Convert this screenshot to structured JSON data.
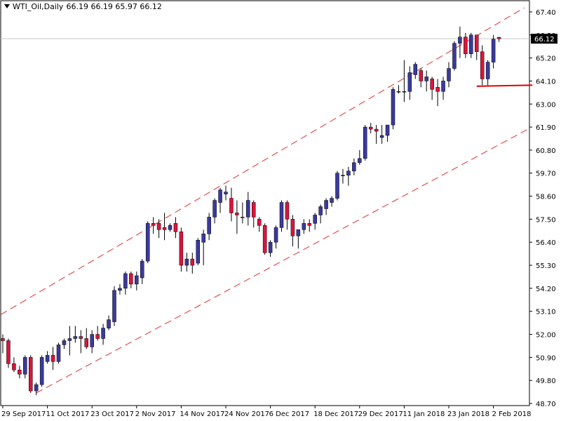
{
  "header": {
    "symbol": "WTI_Oil,Daily",
    "ohlc": "66.19 66.19 65.97 66.12"
  },
  "chart_data": {
    "type": "candlestick",
    "title": "WTI_Oil,Daily",
    "xlabel": "",
    "ylabel": "",
    "ylim": [
      48.7,
      67.6
    ],
    "grid": false,
    "y_ticks": [
      "67.40",
      "66.30",
      "65.20",
      "64.10",
      "63.00",
      "61.90",
      "60.80",
      "59.70",
      "58.60",
      "57.50",
      "56.40",
      "55.30",
      "54.20",
      "53.10",
      "52.00",
      "50.90",
      "49.80",
      "48.70"
    ],
    "x_ticks": [
      {
        "label": "29 Sep 2017",
        "bar": 0
      },
      {
        "label": "11 Oct 2017",
        "bar": 8
      },
      {
        "label": "23 Oct 2017",
        "bar": 16
      },
      {
        "label": "2 Nov 2017",
        "bar": 24
      },
      {
        "label": "14 Nov 2017",
        "bar": 32
      },
      {
        "label": "24 Nov 2017",
        "bar": 40
      },
      {
        "label": "6 Dec 2017",
        "bar": 48
      },
      {
        "label": "18 Dec 2017",
        "bar": 56
      },
      {
        "label": "29 Dec 2017",
        "bar": 64
      },
      {
        "label": "11 Jan 2018",
        "bar": 72
      },
      {
        "label": "23 Jan 2018",
        "bar": 80
      },
      {
        "label": "2 Feb 2018",
        "bar": 88
      }
    ],
    "current_price": "66.12",
    "colors": {
      "bull": "#3a3a9c",
      "bear": "#dc143c",
      "channel": "#e03030",
      "support": "#e00000",
      "grid": "#c8c8c8"
    },
    "bars": [
      [
        51.8,
        52.0,
        51.1,
        51.7
      ],
      [
        51.7,
        51.8,
        50.4,
        50.6
      ],
      [
        50.6,
        50.9,
        50.2,
        50.3
      ],
      [
        50.3,
        50.5,
        49.9,
        50.1
      ],
      [
        50.1,
        51.0,
        49.9,
        50.9
      ],
      [
        50.9,
        51.0,
        49.2,
        49.3
      ],
      [
        49.3,
        49.7,
        49.1,
        49.6
      ],
      [
        49.6,
        51.0,
        49.5,
        50.9
      ],
      [
        50.7,
        51.2,
        50.6,
        51.0
      ],
      [
        51.0,
        51.4,
        50.3,
        50.7
      ],
      [
        50.7,
        51.6,
        50.6,
        51.5
      ],
      [
        51.5,
        51.8,
        51.3,
        51.7
      ],
      [
        51.7,
        52.4,
        51.0,
        51.8
      ],
      [
        51.8,
        52.4,
        51.6,
        51.9
      ],
      [
        51.9,
        52.2,
        51.1,
        51.8
      ],
      [
        51.8,
        52.3,
        51.3,
        51.4
      ],
      [
        51.4,
        52.2,
        51.1,
        52.0
      ],
      [
        52.0,
        52.4,
        51.7,
        51.8
      ],
      [
        51.8,
        52.5,
        51.5,
        52.3
      ],
      [
        52.3,
        52.9,
        52.2,
        52.7
      ],
      [
        52.6,
        54.3,
        52.4,
        54.1
      ],
      [
        54.1,
        54.4,
        53.9,
        54.2
      ],
      [
        54.2,
        55.0,
        53.9,
        54.9
      ],
      [
        54.9,
        55.0,
        54.2,
        54.4
      ],
      [
        54.4,
        55.0,
        54.1,
        54.8
      ],
      [
        54.7,
        55.6,
        54.4,
        55.5
      ],
      [
        55.5,
        57.4,
        55.4,
        57.3
      ],
      [
        57.3,
        57.6,
        56.8,
        57.2
      ],
      [
        57.3,
        57.5,
        56.6,
        57.0
      ],
      [
        57.1,
        57.8,
        56.5,
        57.0
      ],
      [
        57.0,
        57.3,
        56.9,
        57.2
      ],
      [
        57.3,
        57.6,
        56.6,
        56.9
      ],
      [
        56.9,
        57.1,
        55.0,
        55.3
      ],
      [
        55.3,
        55.9,
        55.0,
        55.6
      ],
      [
        55.6,
        55.9,
        54.9,
        55.3
      ],
      [
        55.4,
        56.6,
        55.3,
        56.5
      ],
      [
        56.4,
        57.0,
        55.3,
        56.8
      ],
      [
        56.8,
        57.8,
        56.5,
        57.6
      ],
      [
        57.6,
        58.5,
        57.3,
        58.4
      ],
      [
        58.3,
        59.0,
        57.8,
        58.9
      ],
      [
        58.7,
        59.1,
        58.4,
        58.8
      ],
      [
        58.5,
        59.0,
        57.4,
        57.8
      ],
      [
        57.8,
        58.4,
        56.8,
        57.7
      ],
      [
        57.6,
        58.3,
        57.3,
        57.6
      ],
      [
        57.6,
        58.8,
        57.2,
        58.4
      ],
      [
        58.3,
        58.4,
        57.1,
        57.6
      ],
      [
        57.5,
        57.6,
        56.9,
        57.2
      ],
      [
        57.2,
        57.3,
        55.8,
        55.9
      ],
      [
        55.9,
        56.5,
        55.7,
        56.4
      ],
      [
        56.4,
        57.2,
        56.1,
        57.1
      ],
      [
        57.1,
        58.4,
        56.9,
        58.3
      ],
      [
        58.3,
        58.4,
        57.0,
        57.5
      ],
      [
        57.5,
        57.7,
        56.2,
        56.7
      ],
      [
        56.7,
        57.0,
        56.1,
        57.0
      ],
      [
        57.0,
        57.5,
        56.8,
        57.3
      ],
      [
        57.3,
        57.5,
        56.9,
        57.2
      ],
      [
        57.3,
        57.8,
        57.0,
        57.7
      ],
      [
        57.7,
        58.2,
        57.3,
        58.1
      ],
      [
        58.0,
        58.5,
        57.7,
        58.4
      ],
      [
        58.3,
        58.6,
        58.1,
        58.5
      ],
      [
        58.5,
        59.8,
        58.4,
        59.7
      ],
      [
        59.6,
        59.9,
        59.2,
        59.6
      ],
      [
        59.6,
        60.0,
        59.1,
        59.8
      ],
      [
        59.8,
        60.4,
        59.6,
        60.2
      ],
      [
        60.2,
        60.8,
        60.1,
        60.4
      ],
      [
        60.4,
        62.0,
        60.3,
        61.9
      ],
      [
        61.9,
        62.1,
        61.6,
        61.8
      ],
      [
        61.8,
        62.0,
        61.1,
        61.7
      ],
      [
        61.4,
        62.0,
        61.1,
        61.5
      ],
      [
        61.5,
        62.0,
        61.2,
        62.0
      ],
      [
        62.0,
        63.8,
        61.8,
        63.7
      ],
      [
        63.6,
        63.9,
        63.5,
        63.6
      ],
      [
        63.6,
        65.1,
        63.1,
        63.6
      ],
      [
        63.6,
        64.8,
        63.2,
        64.5
      ],
      [
        64.4,
        65.0,
        64.2,
        64.9
      ],
      [
        64.6,
        64.7,
        63.8,
        64.1
      ],
      [
        64.1,
        64.6,
        63.6,
        64.3
      ],
      [
        64.2,
        64.3,
        63.2,
        63.7
      ],
      [
        63.8,
        64.2,
        62.9,
        63.6
      ],
      [
        63.6,
        64.3,
        63.2,
        64.1
      ],
      [
        64.1,
        65.0,
        63.8,
        64.7
      ],
      [
        64.7,
        66.0,
        64.6,
        65.9
      ],
      [
        65.9,
        66.7,
        65.2,
        66.2
      ],
      [
        66.2,
        66.4,
        65.2,
        65.4
      ],
      [
        65.4,
        66.4,
        65.2,
        66.3
      ],
      [
        66.3,
        66.3,
        65.1,
        65.5
      ],
      [
        65.5,
        65.8,
        63.9,
        64.2
      ],
      [
        64.2,
        65.1,
        63.9,
        65.0
      ],
      [
        65.0,
        66.3,
        64.7,
        66.1
      ],
      [
        66.19,
        66.19,
        65.97,
        66.12
      ]
    ],
    "channel_upper": [
      [
        0,
        53.0
      ],
      [
        91,
        67.2
      ]
    ],
    "channel_lower": [
      [
        6,
        49.2
      ],
      [
        104,
        63.2
      ]
    ],
    "support_line": [
      [
        85,
        63.85
      ],
      [
        95,
        63.9
      ]
    ]
  }
}
